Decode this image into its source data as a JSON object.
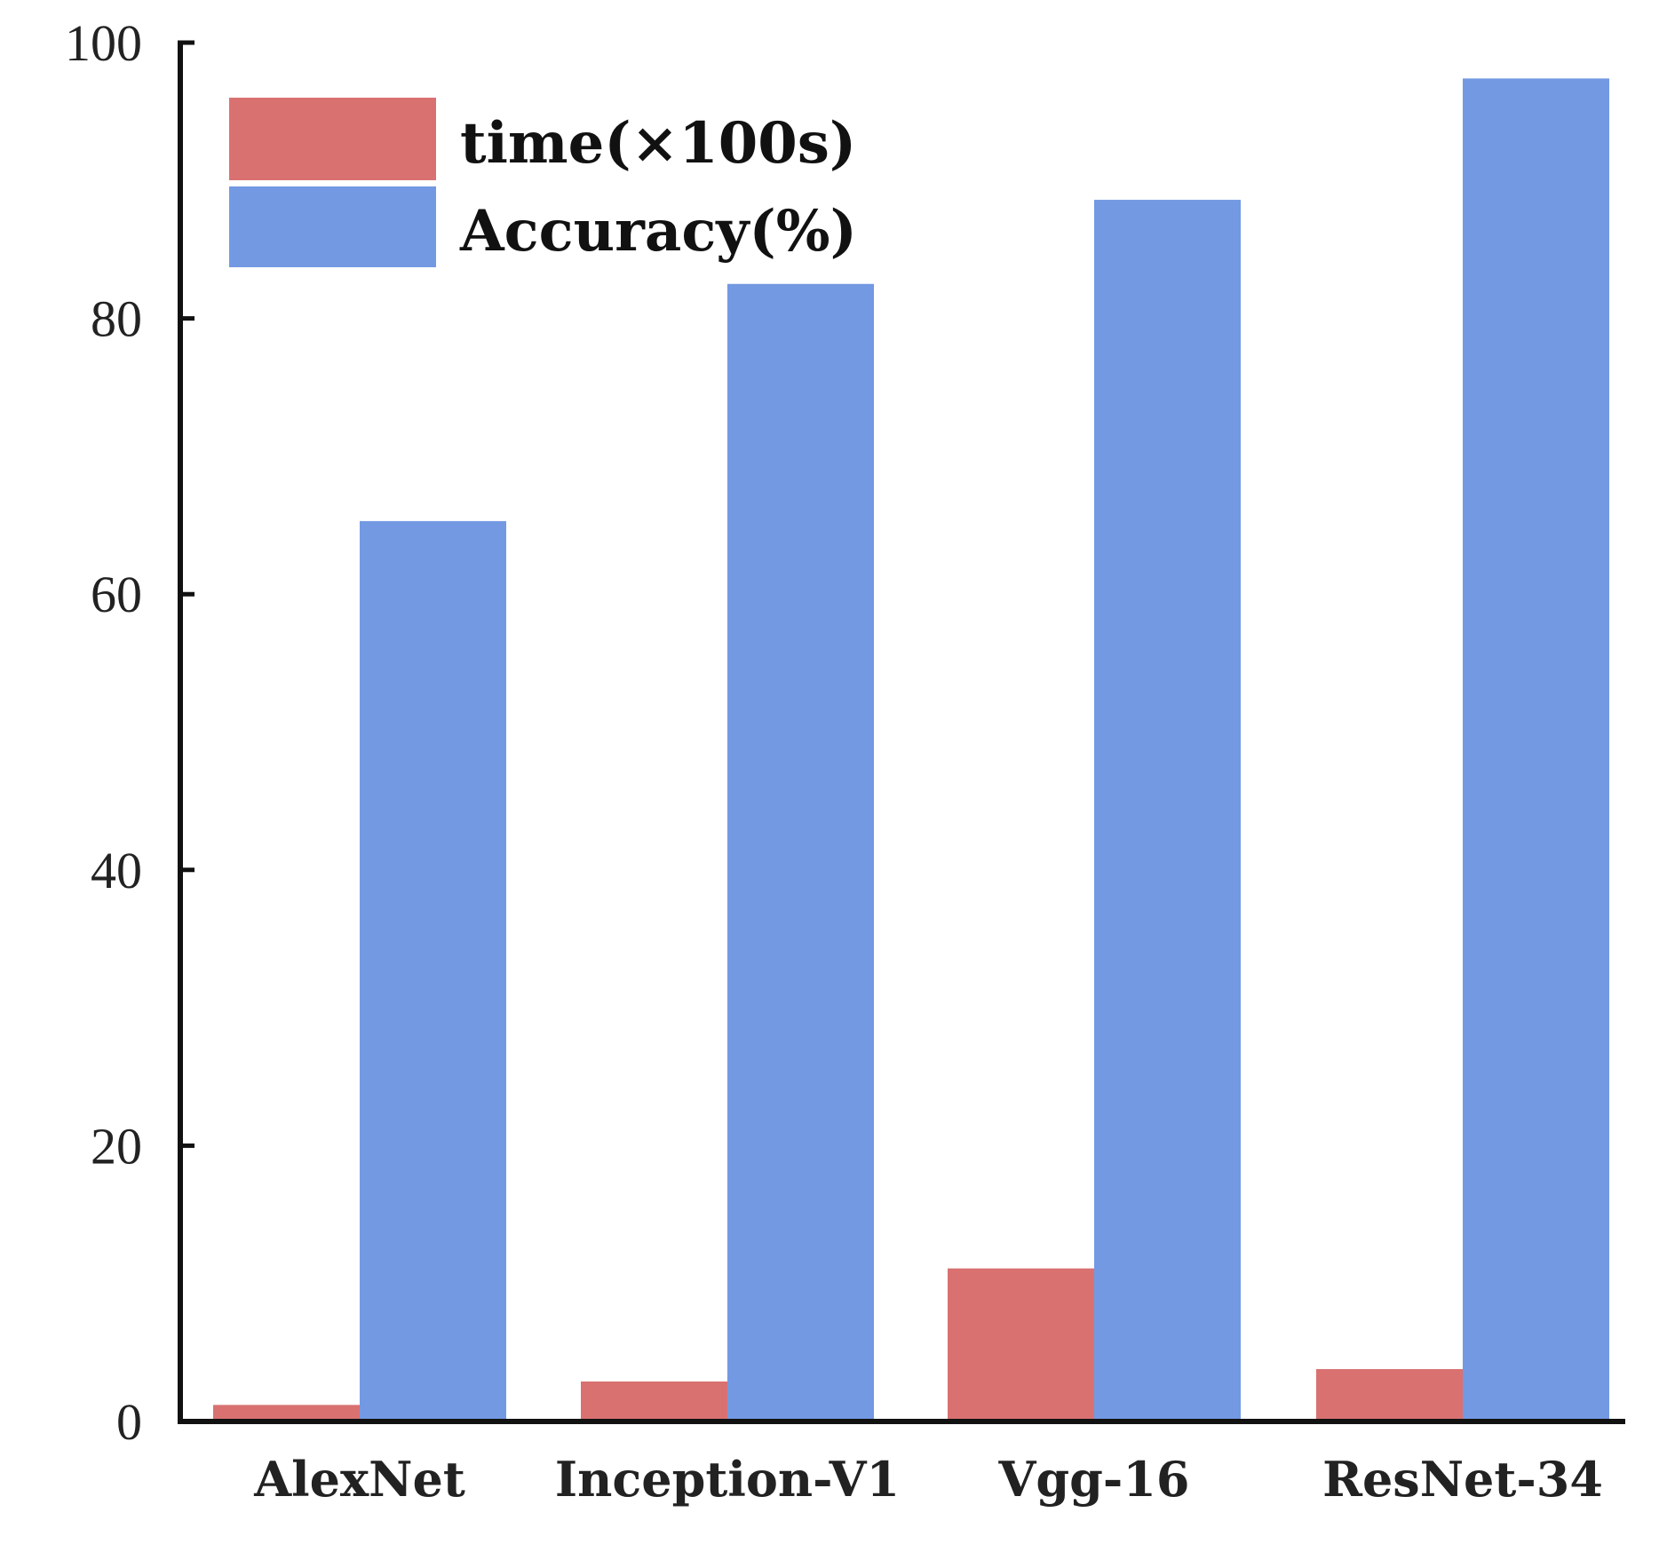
{
  "chart_data": {
    "type": "bar",
    "title": "",
    "xlabel": "",
    "ylabel": "",
    "categories": [
      "AlexNet",
      "Inception-V1",
      "Vgg-16",
      "ResNet-34"
    ],
    "series": [
      {
        "name": "time(×100s)",
        "color": "#d97171",
        "values": [
          1.2,
          2.9,
          11.1,
          3.8
        ]
      },
      {
        "name": "Accuracy(%)",
        "color": "#7399e3",
        "values": [
          65.3,
          82.5,
          88.6,
          97.4
        ]
      }
    ],
    "ylim": [
      0,
      100
    ],
    "yticks": [
      "0",
      "20",
      "40",
      "60",
      "80",
      "100"
    ],
    "ytick_values": [
      0,
      20,
      40,
      60,
      80,
      100
    ],
    "grid": false,
    "legend_position": "top-left"
  }
}
